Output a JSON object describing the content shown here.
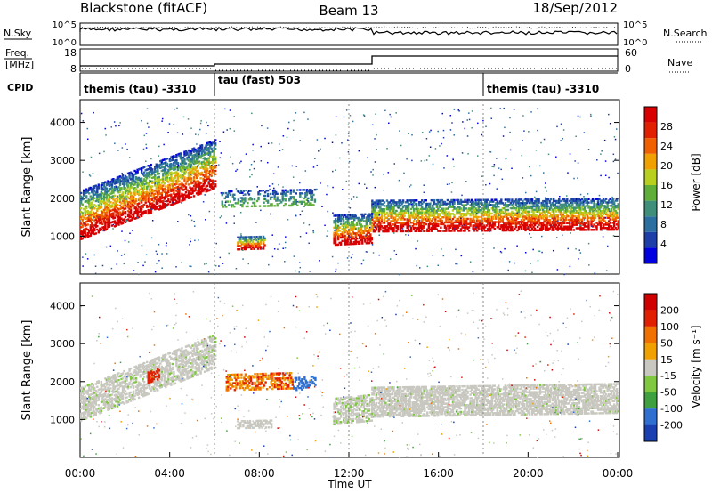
{
  "header": {
    "title": "Blackstone (fitACF)",
    "beam": "Beam 13",
    "date": "18/Sep/2012"
  },
  "noise_panel": {
    "left_label": "N.Sky",
    "left_ticks": [
      "10^5",
      "10^0"
    ],
    "right_label": "N.Search",
    "right_ticks": [
      "10^5",
      "10^0"
    ]
  },
  "freq_panel": {
    "left_label_1": "Freq.",
    "left_label_2": "[MHz]",
    "left_ticks": [
      "18",
      "8"
    ],
    "right_label": "Nave",
    "right_ticks": [
      "60",
      "0"
    ]
  },
  "cpid_panel": {
    "label": "CPID",
    "segments": [
      "themis (tau) -3310",
      "tau (fast) 503",
      "themis (tau) -3310"
    ]
  },
  "chart_data": [
    {
      "type": "heatmap",
      "name": "power",
      "ylabel": "Slant Range [km]",
      "yticks": [
        "1000",
        "2000",
        "3000",
        "4000"
      ],
      "ylim": [
        0,
        4600
      ],
      "xlim_hours": [
        0,
        24
      ],
      "colorbar_label": "Power [dB]",
      "colorbar_ticks": [
        "4",
        "8",
        "12",
        "16",
        "20",
        "24",
        "28"
      ],
      "colorbar_range": [
        0,
        32
      ],
      "colorbar_colors": [
        "#0000e0",
        "#1e3fa8",
        "#2b6fa0",
        "#3f8f7a",
        "#5fae3a",
        "#b8cf20",
        "#f0a000",
        "#f06000",
        "#e02000",
        "#d80000"
      ],
      "features": [
        {
          "hours": [
            0.0,
            6.0
          ],
          "range_start": [
            1100,
            2700
          ],
          "band": "main"
        },
        {
          "hours": [
            7.0,
            8.2
          ],
          "range": [
            820,
            880
          ]
        },
        {
          "hours": [
            11.3,
            13.0
          ],
          "range": [
            950,
            1400
          ]
        },
        {
          "hours": [
            13.0,
            24.0
          ],
          "range": [
            1250,
            1450
          ],
          "band": "main"
        }
      ]
    },
    {
      "type": "heatmap",
      "name": "velocity",
      "ylabel": "Slant Range [km]",
      "yticks": [
        "1000",
        "2000",
        "3000",
        "4000"
      ],
      "ylim": [
        0,
        4600
      ],
      "xlim_hours": [
        0,
        24
      ],
      "colorbar_label": "Velocity [m s⁻¹]",
      "colorbar_ticks": [
        "200",
        "100",
        "50",
        "15",
        "-15",
        "-50",
        "-100",
        "-200"
      ],
      "colorbar_colors": [
        "#1a3fb0",
        "#2e6fd0",
        "#3fa03f",
        "#80c840",
        "#c8c8c0",
        "#f0a000",
        "#f07000",
        "#e02000",
        "#d00000"
      ],
      "xticks": [
        "00:00",
        "04:00",
        "08:00",
        "12:00",
        "16:00",
        "20:00",
        "00:00"
      ],
      "xlabel": "Time UT"
    }
  ]
}
